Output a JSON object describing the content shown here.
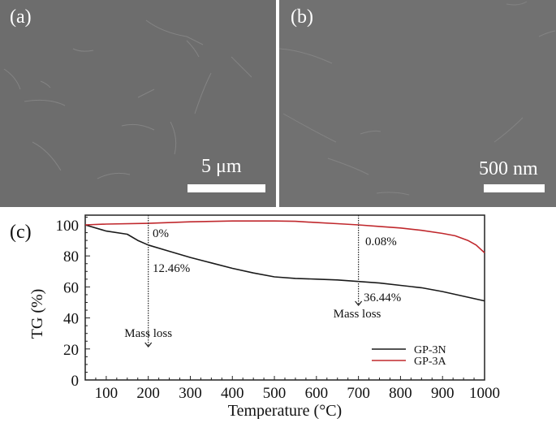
{
  "panels": {
    "a": {
      "label": "(a)",
      "scale_bar": "5 μm"
    },
    "b": {
      "label": "(b)",
      "scale_bar": "500 nm"
    },
    "c": {
      "label": "(c)"
    }
  },
  "chart_data": {
    "type": "line",
    "title": "",
    "xlabel": "Temperature (°C)",
    "ylabel": "TG (%)",
    "xlim": [
      50,
      1000
    ],
    "ylim": [
      0,
      105
    ],
    "xticks": [
      100,
      200,
      300,
      400,
      500,
      600,
      700,
      800,
      900,
      1000
    ],
    "yticks": [
      0,
      20,
      40,
      60,
      80,
      100
    ],
    "grid": false,
    "legend_position": "lower right",
    "series": [
      {
        "name": "GP-3N",
        "color": "#1a1a1a",
        "x": [
          50,
          100,
          150,
          175,
          200,
          250,
          300,
          350,
          400,
          450,
          500,
          550,
          600,
          650,
          700,
          750,
          800,
          850,
          900,
          950,
          1000
        ],
        "y": [
          100,
          96,
          94,
          90,
          87,
          83,
          79,
          75.5,
          72,
          69,
          66.5,
          65.5,
          65,
          64.5,
          63.5,
          62.5,
          61,
          59.5,
          57,
          54,
          51
        ]
      },
      {
        "name": "GP-3A",
        "color": "#c0282d",
        "x": [
          50,
          100,
          200,
          300,
          400,
          500,
          550,
          600,
          650,
          700,
          750,
          800,
          850,
          900,
          930,
          960,
          980,
          1000
        ],
        "y": [
          100,
          100.5,
          101,
          102,
          102.5,
          102.5,
          102.3,
          101.5,
          100.8,
          100,
          99,
          98,
          96.5,
          94.5,
          93,
          90,
          87,
          82
        ]
      }
    ],
    "annotations": [
      {
        "text": "0%",
        "x": 200,
        "series": "GP-3A"
      },
      {
        "text": "12.46%",
        "x": 200,
        "series": "GP-3N"
      },
      {
        "text": "Mass loss",
        "x": 200,
        "arrow": "down"
      },
      {
        "text": "0.08%",
        "x": 700,
        "series": "GP-3A"
      },
      {
        "text": "36.44%",
        "x": 700,
        "series": "GP-3N"
      },
      {
        "text": "Mass loss",
        "x": 700,
        "arrow": "down"
      }
    ]
  }
}
